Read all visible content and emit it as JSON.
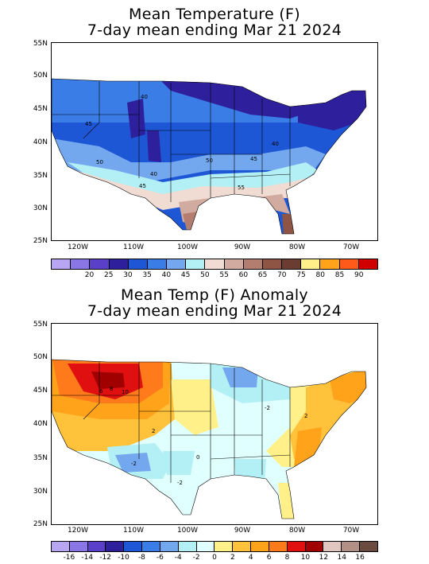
{
  "top": {
    "title_line1": "Mean Temperature (F)",
    "title_line2": "7-day mean ending Mar 21 2024",
    "lat_labels": [
      "55N",
      "50N",
      "45N",
      "40N",
      "35N",
      "30N",
      "25N"
    ],
    "lon_labels": [
      "120W",
      "110W",
      "100W",
      "90W",
      "80W",
      "70W"
    ],
    "contour_labels": [
      "40",
      "45",
      "50",
      "40",
      "50",
      "45",
      "40",
      "45",
      "55"
    ],
    "colorbar_colors": [
      "#b9a6f2",
      "#8b76e6",
      "#5a3fc8",
      "#2e1f9c",
      "#1e57d6",
      "#3b7de6",
      "#73a8ef",
      "#b3f0f5",
      "#f0dcd2",
      "#d1aaa0",
      "#b37e70",
      "#8e5444",
      "#6b3d32",
      "#fff08a",
      "#ffa31a",
      "#ff5a1a",
      "#d00000"
    ],
    "colorbar_labels": [
      "20",
      "25",
      "30",
      "35",
      "40",
      "45",
      "50",
      "55",
      "60",
      "65",
      "70",
      "75",
      "80",
      "85",
      "90"
    ]
  },
  "bottom": {
    "title_line1": "Mean Temp (F) Anomaly",
    "title_line2": "7-day mean ending Mar 21 2024",
    "lat_labels": [
      "55N",
      "50N",
      "45N",
      "40N",
      "35N",
      "30N",
      "25N"
    ],
    "lon_labels": [
      "120W",
      "110W",
      "100W",
      "90W",
      "80W",
      "70W"
    ],
    "contour_labels": [
      "6",
      "8",
      "10",
      "2",
      "0",
      "-2",
      "-2",
      "2",
      "-2"
    ],
    "colorbar_colors": [
      "#b9a6f2",
      "#8b76e6",
      "#5a3fc8",
      "#2e1f9c",
      "#1e57d6",
      "#3b7de6",
      "#73a8ef",
      "#b3f0f5",
      "#e0ffff",
      "#fff08a",
      "#ffc23a",
      "#ffa31a",
      "#ff7a1a",
      "#e01010",
      "#a00000",
      "#e0c6bf",
      "#b39086",
      "#6b4a40"
    ],
    "colorbar_labels": [
      "-16",
      "-14",
      "-12",
      "-10",
      "-8",
      "-6",
      "-4",
      "-2",
      "0",
      "2",
      "4",
      "6",
      "8",
      "10",
      "12",
      "14",
      "16"
    ]
  }
}
